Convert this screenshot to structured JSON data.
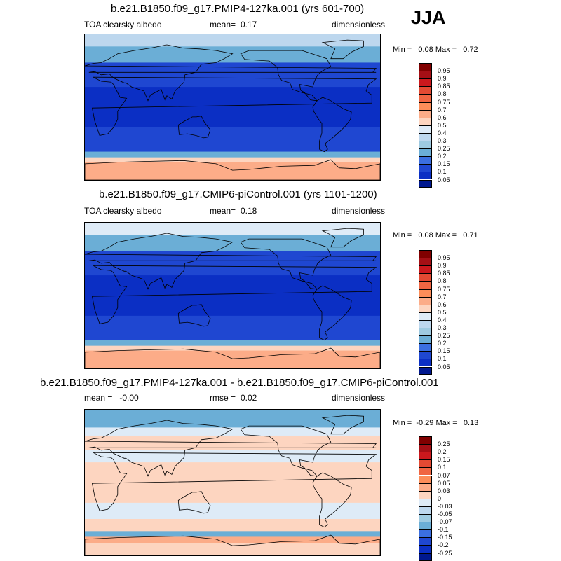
{
  "season": "JJA",
  "panels": [
    {
      "id": "lig127k",
      "title": "b.e21.B1850.f09_g17.PMIP4-127ka.001 (yrs 601-700)",
      "var_label": "TOA clearsky albedo",
      "mean_label": "mean=",
      "mean_value": "0.17",
      "units": "dimensionless",
      "minmax_text": "Min =   0.08 Max =   0.72"
    },
    {
      "id": "piControl",
      "title": "b.e21.B1850.f09_g17.CMIP6-piControl.001 (yrs 1101-1200)",
      "var_label": "TOA clearsky albedo",
      "mean_label": "mean=",
      "mean_value": "0.18",
      "units": "dimensionless",
      "minmax_text": "Min =   0.08 Max =   0.71"
    },
    {
      "id": "difference",
      "title": "b.e21.B1850.f09_g17.PMIP4-127ka.001 - b.e21.B1850.f09_g17.CMIP6-piControl.001",
      "var_label": "mean =   -0.00",
      "rmse_label": "rmse =",
      "rmse_value": "0.02",
      "units": "dimensionless",
      "minmax_text": "Min =  -0.29 Max =   0.13"
    }
  ],
  "chart_data": [
    {
      "type": "heatmap",
      "title": "b.e21.B1850.f09_g17.PMIP4-127ka.001 (yrs 601-700)",
      "variable": "TOA clearsky albedo",
      "units": "dimensionless",
      "season": "JJA",
      "mean": 0.17,
      "min": 0.08,
      "max": 0.72,
      "colorbar_levels": [
        0.95,
        0.9,
        0.85,
        0.8,
        0.75,
        0.7,
        0.6,
        0.5,
        0.4,
        0.3,
        0.25,
        0.2,
        0.15,
        0.1,
        0.05
      ],
      "colorbar_labels": [
        "0.95",
        "0.9",
        "0.85",
        "0.8",
        "0.75",
        "0.7",
        "0.6",
        "0.5",
        "0.4",
        "0.3",
        "0.25",
        "0.2",
        "0.15",
        "0.1",
        "0.05"
      ],
      "colorbar_colors": [
        "#800000",
        "#a50f15",
        "#cb181d",
        "#e34a33",
        "#f06542",
        "#fc8d59",
        "#fcac88",
        "#fdd5c0",
        "#deebf7",
        "#bdd7ee",
        "#9ecae1",
        "#6baed6",
        "#3b6fe0",
        "#1f47d1",
        "#0b2fc4",
        "#00188f"
      ],
      "zones": [
        {
          "lat": [
            75,
            90
          ],
          "level": 0.3
        },
        {
          "lat": [
            55,
            75
          ],
          "level": 0.2
        },
        {
          "lat": [
            25,
            55
          ],
          "level": 0.1
        },
        {
          "lat": [
            -25,
            25
          ],
          "level": 0.05
        },
        {
          "lat": [
            -55,
            -25
          ],
          "level": 0.1
        },
        {
          "lat": [
            -62,
            -55
          ],
          "level": 0.2
        },
        {
          "lat": [
            -68,
            -62
          ],
          "level": 0.5
        },
        {
          "lat": [
            -90,
            -68
          ],
          "level": 0.6
        }
      ]
    },
    {
      "type": "heatmap",
      "title": "b.e21.B1850.f09_g17.CMIP6-piControl.001 (yrs 1101-1200)",
      "variable": "TOA clearsky albedo",
      "units": "dimensionless",
      "season": "JJA",
      "mean": 0.18,
      "min": 0.08,
      "max": 0.71,
      "colorbar_levels": [
        0.95,
        0.9,
        0.85,
        0.8,
        0.75,
        0.7,
        0.6,
        0.5,
        0.4,
        0.3,
        0.25,
        0.2,
        0.15,
        0.1,
        0.05
      ],
      "colorbar_labels": [
        "0.95",
        "0.9",
        "0.85",
        "0.8",
        "0.75",
        "0.7",
        "0.6",
        "0.5",
        "0.4",
        "0.3",
        "0.25",
        "0.2",
        "0.15",
        "0.1",
        "0.05"
      ],
      "colorbar_colors": [
        "#800000",
        "#a50f15",
        "#cb181d",
        "#e34a33",
        "#f06542",
        "#fc8d59",
        "#fcac88",
        "#fdd5c0",
        "#deebf7",
        "#bdd7ee",
        "#9ecae1",
        "#6baed6",
        "#3b6fe0",
        "#1f47d1",
        "#0b2fc4",
        "#00188f"
      ],
      "zones": [
        {
          "lat": [
            75,
            90
          ],
          "level": 0.4
        },
        {
          "lat": [
            55,
            75
          ],
          "level": 0.2
        },
        {
          "lat": [
            25,
            55
          ],
          "level": 0.1
        },
        {
          "lat": [
            -25,
            25
          ],
          "level": 0.05
        },
        {
          "lat": [
            -55,
            -25
          ],
          "level": 0.1
        },
        {
          "lat": [
            -62,
            -55
          ],
          "level": 0.2
        },
        {
          "lat": [
            -68,
            -62
          ],
          "level": 0.5
        },
        {
          "lat": [
            -90,
            -68
          ],
          "level": 0.6
        }
      ]
    },
    {
      "type": "heatmap",
      "title": "b.e21.B1850.f09_g17.PMIP4-127ka.001 - b.e21.B1850.f09_g17.CMIP6-piControl.001",
      "units": "dimensionless",
      "season": "JJA",
      "mean": -0.0,
      "rmse": 0.02,
      "min": -0.29,
      "max": 0.13,
      "colorbar_levels": [
        0.25,
        0.2,
        0.15,
        0.1,
        0.07,
        0.05,
        0.03,
        0,
        -0.03,
        -0.05,
        -0.07,
        -0.1,
        -0.15,
        -0.2,
        -0.25
      ],
      "colorbar_labels": [
        "0.25",
        "0.2",
        "0.15",
        "0.1",
        "0.07",
        "0.05",
        "0.03",
        "0",
        "-0.03",
        "-0.05",
        "-0.07",
        "-0.1",
        "-0.15",
        "-0.2",
        "-0.25"
      ],
      "colorbar_colors": [
        "#800000",
        "#a50f15",
        "#cb181d",
        "#e34a33",
        "#f06542",
        "#fc8d59",
        "#fcac88",
        "#fdd5c0",
        "#deebf7",
        "#bdd7ee",
        "#9ecae1",
        "#6baed6",
        "#3b6fe0",
        "#1f47d1",
        "#0b2fc4",
        "#00188f"
      ],
      "zones": [
        {
          "lat": [
            68,
            90
          ],
          "level": -0.1
        },
        {
          "lat": [
            58,
            68
          ],
          "level": -0.03
        },
        {
          "lat": [
            40,
            58
          ],
          "level": 0
        },
        {
          "lat": [
            25,
            40
          ],
          "level": -0.03
        },
        {
          "lat": [
            -25,
            25
          ],
          "level": 0
        },
        {
          "lat": [
            -45,
            -25
          ],
          "level": -0.03
        },
        {
          "lat": [
            -60,
            -45
          ],
          "level": 0
        },
        {
          "lat": [
            -67,
            -60
          ],
          "level": -0.1
        },
        {
          "lat": [
            -75,
            -67
          ],
          "level": 0.03
        },
        {
          "lat": [
            -90,
            -75
          ],
          "level": 0
        }
      ]
    }
  ]
}
